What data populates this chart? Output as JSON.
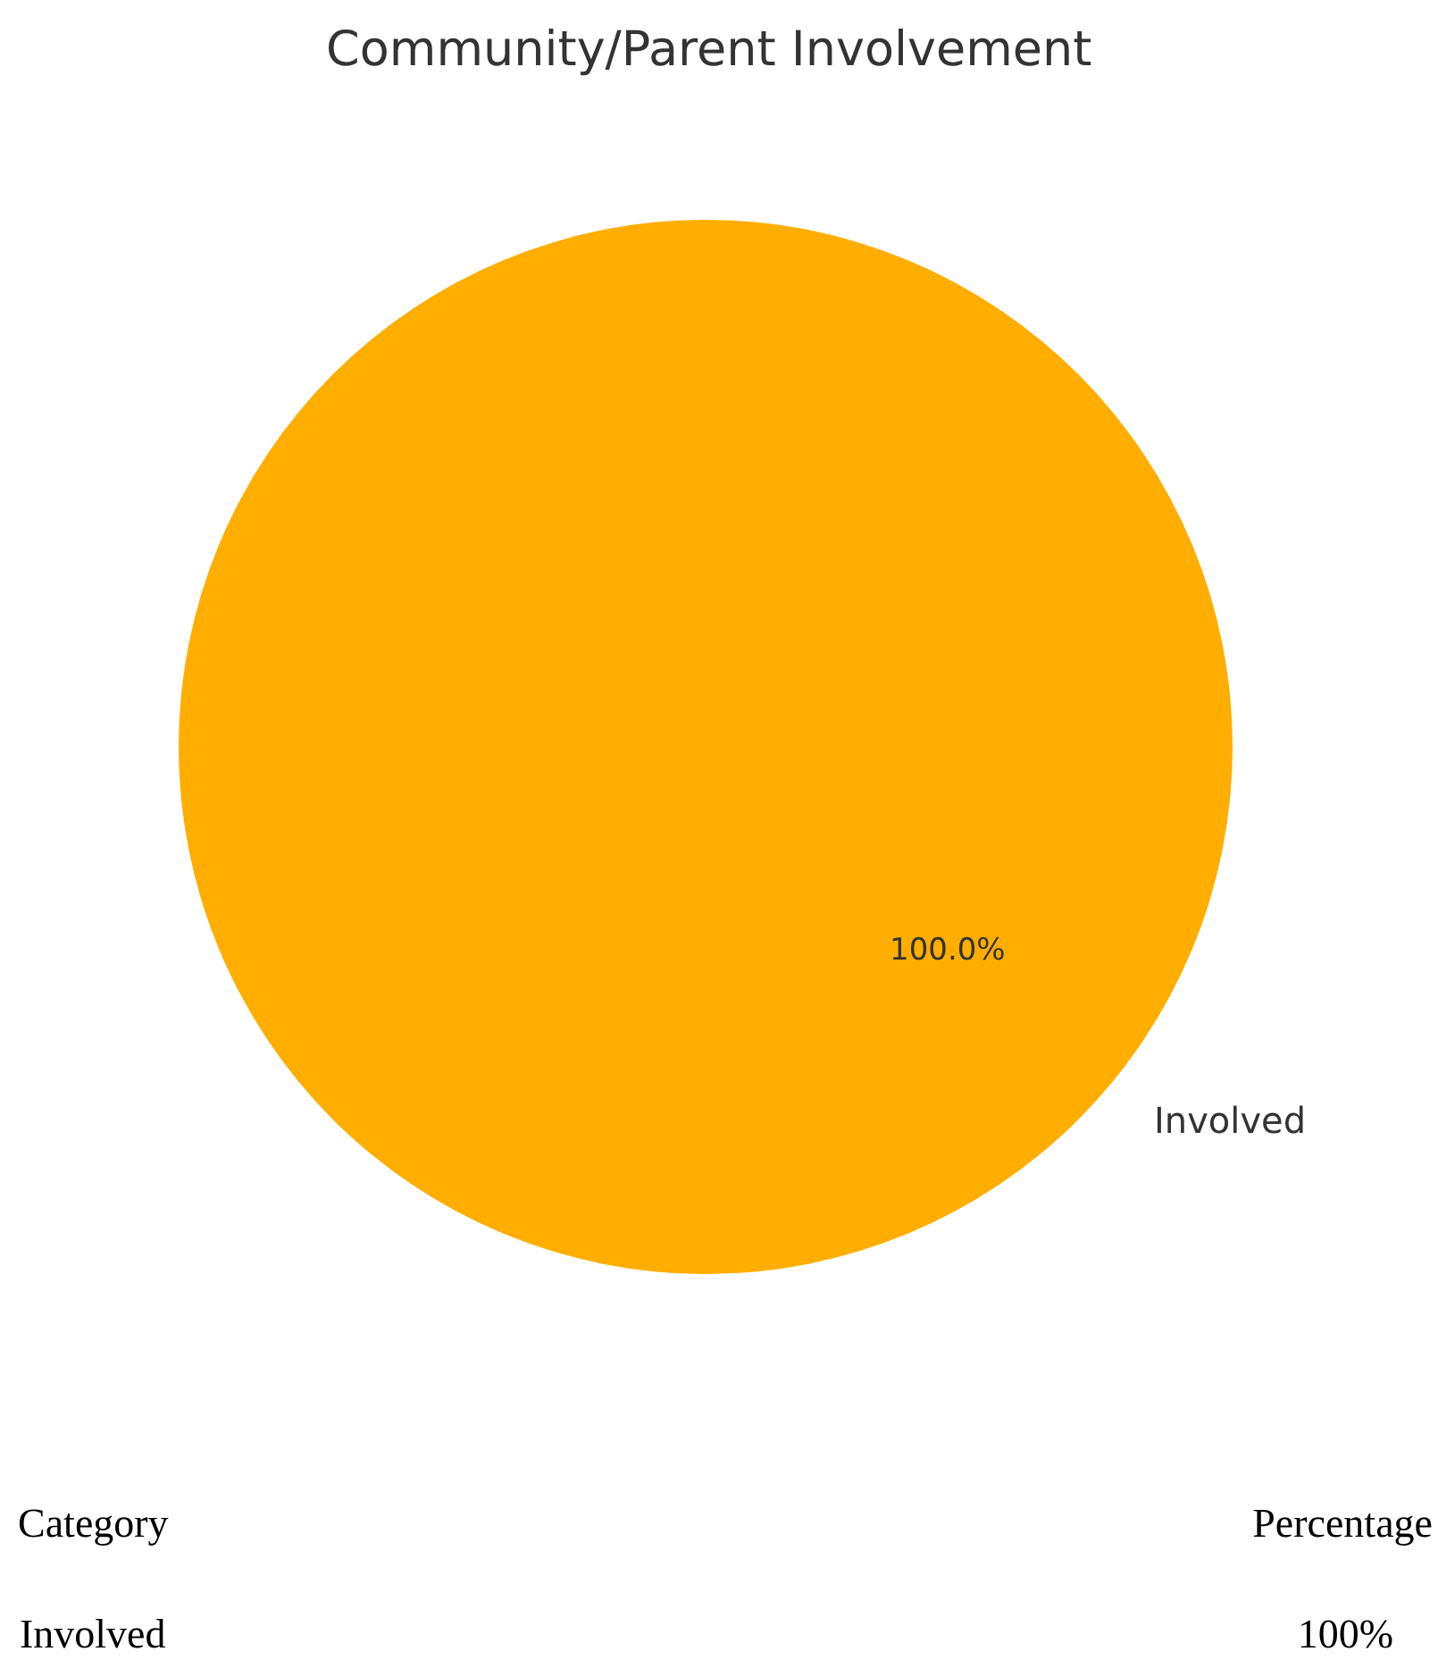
{
  "chart_data": {
    "type": "pie",
    "title": "Community/Parent Involvement",
    "categories": [
      "Involved"
    ],
    "values": [
      100
    ],
    "colors": [
      "#ffae00"
    ],
    "value_labels": [
      "100.0%"
    ],
    "annotations": [
      "Category",
      "Percentage",
      "100%"
    ]
  }
}
